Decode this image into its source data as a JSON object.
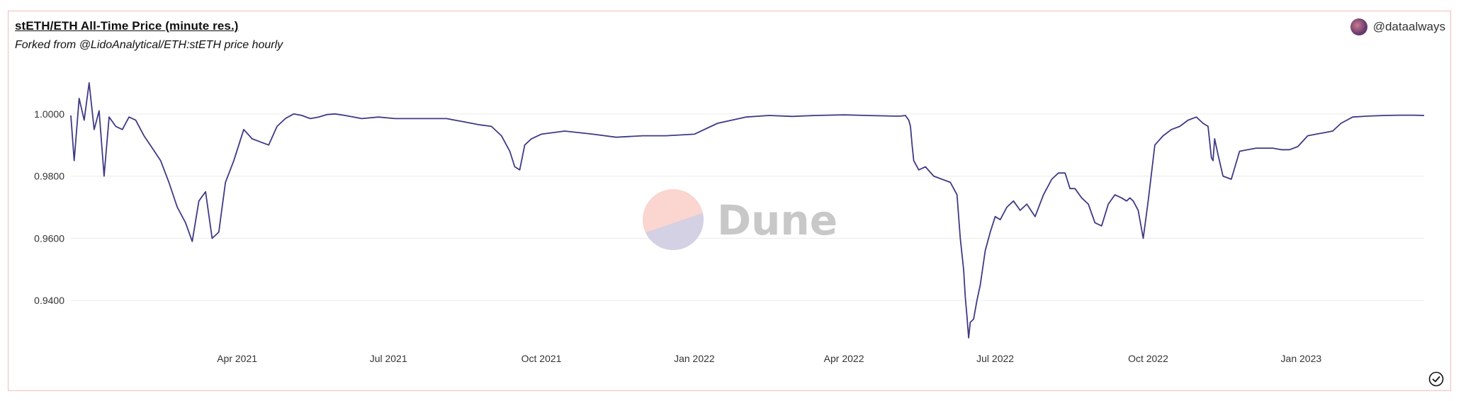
{
  "header": {
    "title": "stETH/ETH All-Time Price (minute res.)",
    "subtitle": "Forked from @LidoAnalytical/ETH:stETH price hourly",
    "author": "@dataalways"
  },
  "watermark": {
    "text": "Dune"
  },
  "icons": {
    "avatar": "avatar-icon",
    "check": "check-circle-icon"
  },
  "colors": {
    "line": "#3f3a86",
    "grid": "#ececec",
    "border": "#f2bcbc"
  },
  "chart_data": {
    "type": "line",
    "title": "stETH/ETH All-Time Price (minute res.)",
    "xlabel": "",
    "ylabel": "",
    "ylim": [
      0.925,
      1.015
    ],
    "xlim": [
      "2020-12-22",
      "2023-03-16"
    ],
    "yticks": [
      1.0,
      0.98,
      0.96,
      0.94
    ],
    "ytick_labels": [
      "1.0000",
      "0.9800",
      "0.9600",
      "0.9400"
    ],
    "xticks": [
      "2021-04-01",
      "2021-07-01",
      "2021-10-01",
      "2022-01-01",
      "2022-04-01",
      "2022-07-01",
      "2022-10-01",
      "2023-01-01"
    ],
    "xtick_labels": [
      "Apr 2021",
      "Jul 2021",
      "Oct 2021",
      "Jan 2022",
      "Apr 2022",
      "Jul 2022",
      "Oct 2022",
      "Jan 2023"
    ],
    "grid": true,
    "series": [
      {
        "x": [
          "2020-12-22",
          "2020-12-24",
          "2020-12-27",
          "2020-12-30",
          "2021-01-02",
          "2021-01-05",
          "2021-01-08",
          "2021-01-11",
          "2021-01-14",
          "2021-01-18",
          "2021-01-22",
          "2021-01-26",
          "2021-01-30",
          "2021-02-04",
          "2021-02-09",
          "2021-02-14",
          "2021-02-19",
          "2021-02-24",
          "2021-03-01",
          "2021-03-05",
          "2021-03-09",
          "2021-03-13",
          "2021-03-17",
          "2021-03-21",
          "2021-03-25",
          "2021-03-30",
          "2021-04-05",
          "2021-04-10",
          "2021-04-15",
          "2021-04-20",
          "2021-04-25",
          "2021-04-30",
          "2021-05-05",
          "2021-05-10",
          "2021-05-15",
          "2021-05-20",
          "2021-05-25",
          "2021-05-30",
          "2021-06-05",
          "2021-06-15",
          "2021-06-25",
          "2021-07-05",
          "2021-07-15",
          "2021-07-25",
          "2021-08-05",
          "2021-08-15",
          "2021-08-25",
          "2021-09-01",
          "2021-09-07",
          "2021-09-12",
          "2021-09-15",
          "2021-09-18",
          "2021-09-21",
          "2021-09-25",
          "2021-10-01",
          "2021-10-15",
          "2021-11-01",
          "2021-11-15",
          "2021-12-01",
          "2021-12-15",
          "2022-01-01",
          "2022-01-15",
          "2022-02-01",
          "2022-02-15",
          "2022-03-01",
          "2022-03-15",
          "2022-04-01",
          "2022-04-15",
          "2022-05-01",
          "2022-05-05",
          "2022-05-08",
          "2022-05-10",
          "2022-05-11",
          "2022-05-12",
          "2022-05-13",
          "2022-05-16",
          "2022-05-20",
          "2022-05-25",
          "2022-05-30",
          "2022-06-04",
          "2022-06-08",
          "2022-06-10",
          "2022-06-12",
          "2022-06-13",
          "2022-06-14",
          "2022-06-15",
          "2022-06-16",
          "2022-06-18",
          "2022-06-20",
          "2022-06-22",
          "2022-06-25",
          "2022-06-28",
          "2022-07-01",
          "2022-07-04",
          "2022-07-08",
          "2022-07-12",
          "2022-07-16",
          "2022-07-20",
          "2022-07-25",
          "2022-07-30",
          "2022-08-04",
          "2022-08-08",
          "2022-08-12",
          "2022-08-15",
          "2022-08-18",
          "2022-08-22",
          "2022-08-26",
          "2022-08-30",
          "2022-09-03",
          "2022-09-07",
          "2022-09-11",
          "2022-09-15",
          "2022-09-18",
          "2022-09-20",
          "2022-09-22",
          "2022-09-25",
          "2022-09-28",
          "2022-10-01",
          "2022-10-05",
          "2022-10-10",
          "2022-10-15",
          "2022-10-20",
          "2022-10-25",
          "2022-10-30",
          "2022-11-03",
          "2022-11-06",
          "2022-11-08",
          "2022-11-09",
          "2022-11-10",
          "2022-11-12",
          "2022-11-15",
          "2022-11-20",
          "2022-11-25",
          "2022-11-30",
          "2022-12-05",
          "2022-12-10",
          "2022-12-15",
          "2022-12-20",
          "2022-12-25",
          "2022-12-30",
          "2023-01-05",
          "2023-01-10",
          "2023-01-15",
          "2023-01-20",
          "2023-01-25",
          "2023-02-01",
          "2023-02-10",
          "2023-02-20",
          "2023-03-01",
          "2023-03-10",
          "2023-03-16"
        ],
        "values": [
          0.9995,
          0.985,
          1.005,
          0.998,
          1.01,
          0.995,
          1.001,
          0.98,
          0.999,
          0.996,
          0.995,
          0.999,
          0.998,
          0.993,
          0.989,
          0.985,
          0.978,
          0.97,
          0.965,
          0.959,
          0.972,
          0.975,
          0.96,
          0.962,
          0.978,
          0.985,
          0.995,
          0.992,
          0.991,
          0.99,
          0.996,
          0.9985,
          1.0,
          0.9995,
          0.9985,
          0.999,
          0.9998,
          1.0,
          0.9995,
          0.9985,
          0.999,
          0.9985,
          0.9985,
          0.9985,
          0.9985,
          0.9975,
          0.9965,
          0.996,
          0.993,
          0.988,
          0.983,
          0.982,
          0.99,
          0.992,
          0.9935,
          0.9945,
          0.9935,
          0.9925,
          0.993,
          0.993,
          0.9935,
          0.997,
          0.999,
          0.9995,
          0.9992,
          0.9995,
          0.9997,
          0.9995,
          0.9993,
          0.9993,
          0.9995,
          0.998,
          0.996,
          0.99,
          0.985,
          0.982,
          0.983,
          0.98,
          0.979,
          0.978,
          0.974,
          0.96,
          0.95,
          0.941,
          0.935,
          0.928,
          0.933,
          0.934,
          0.94,
          0.945,
          0.956,
          0.962,
          0.967,
          0.966,
          0.97,
          0.972,
          0.969,
          0.971,
          0.967,
          0.974,
          0.979,
          0.981,
          0.981,
          0.976,
          0.976,
          0.973,
          0.971,
          0.965,
          0.964,
          0.971,
          0.974,
          0.973,
          0.972,
          0.973,
          0.972,
          0.969,
          0.96,
          0.972,
          0.99,
          0.993,
          0.995,
          0.996,
          0.998,
          0.999,
          0.997,
          0.996,
          0.986,
          0.985,
          0.992,
          0.987,
          0.98,
          0.979,
          0.988,
          0.9885,
          0.989,
          0.989,
          0.989,
          0.9885,
          0.9885,
          0.9895,
          0.993,
          0.9935,
          0.994,
          0.9945,
          0.997,
          0.999,
          0.9993,
          0.9995,
          0.9996,
          0.9996,
          0.9995
        ]
      }
    ]
  }
}
